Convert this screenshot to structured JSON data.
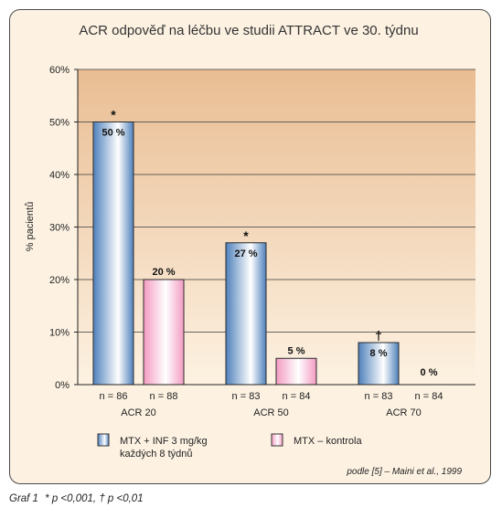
{
  "chart_data": {
    "type": "bar",
    "title": "ACR odpověď na léčbu ve studii ATTRACT ve 30. týdnu",
    "ylabel": "% pacientů",
    "xlabel": "",
    "ylim": [
      0,
      60
    ],
    "yticks": [
      0,
      10,
      20,
      30,
      40,
      50,
      60
    ],
    "ytick_labels": [
      "0%",
      "10%",
      "20%",
      "30%",
      "40%",
      "50%",
      "60%"
    ],
    "grid": true,
    "categories": [
      "ACR 20",
      "ACR 50",
      "ACR 70"
    ],
    "series": [
      {
        "name": "MTX + INF 3 mg/kg\nkaždých 8 týdnů",
        "color": "#5c8fc4",
        "values": [
          50,
          27,
          8
        ],
        "value_labels": [
          "50 %",
          "27 %",
          "8 %"
        ],
        "n_labels": [
          "n = 86",
          "n = 83",
          "n = 83"
        ],
        "significance": [
          "*",
          "*",
          "†"
        ]
      },
      {
        "name": "MTX – kontrola",
        "color": "#f0a5c8",
        "values": [
          20,
          5,
          0
        ],
        "value_labels": [
          "20 %",
          "5 %",
          "0 %"
        ],
        "n_labels": [
          "n = 88",
          "n = 84",
          "n = 84"
        ],
        "significance": [
          "",
          "",
          ""
        ]
      }
    ],
    "legend_position": "bottom",
    "source": "podle [5] – Maini et al., 1999"
  },
  "footnote": {
    "figure_label": "Graf 1",
    "text": "* p <0,001, † p <0,01"
  }
}
